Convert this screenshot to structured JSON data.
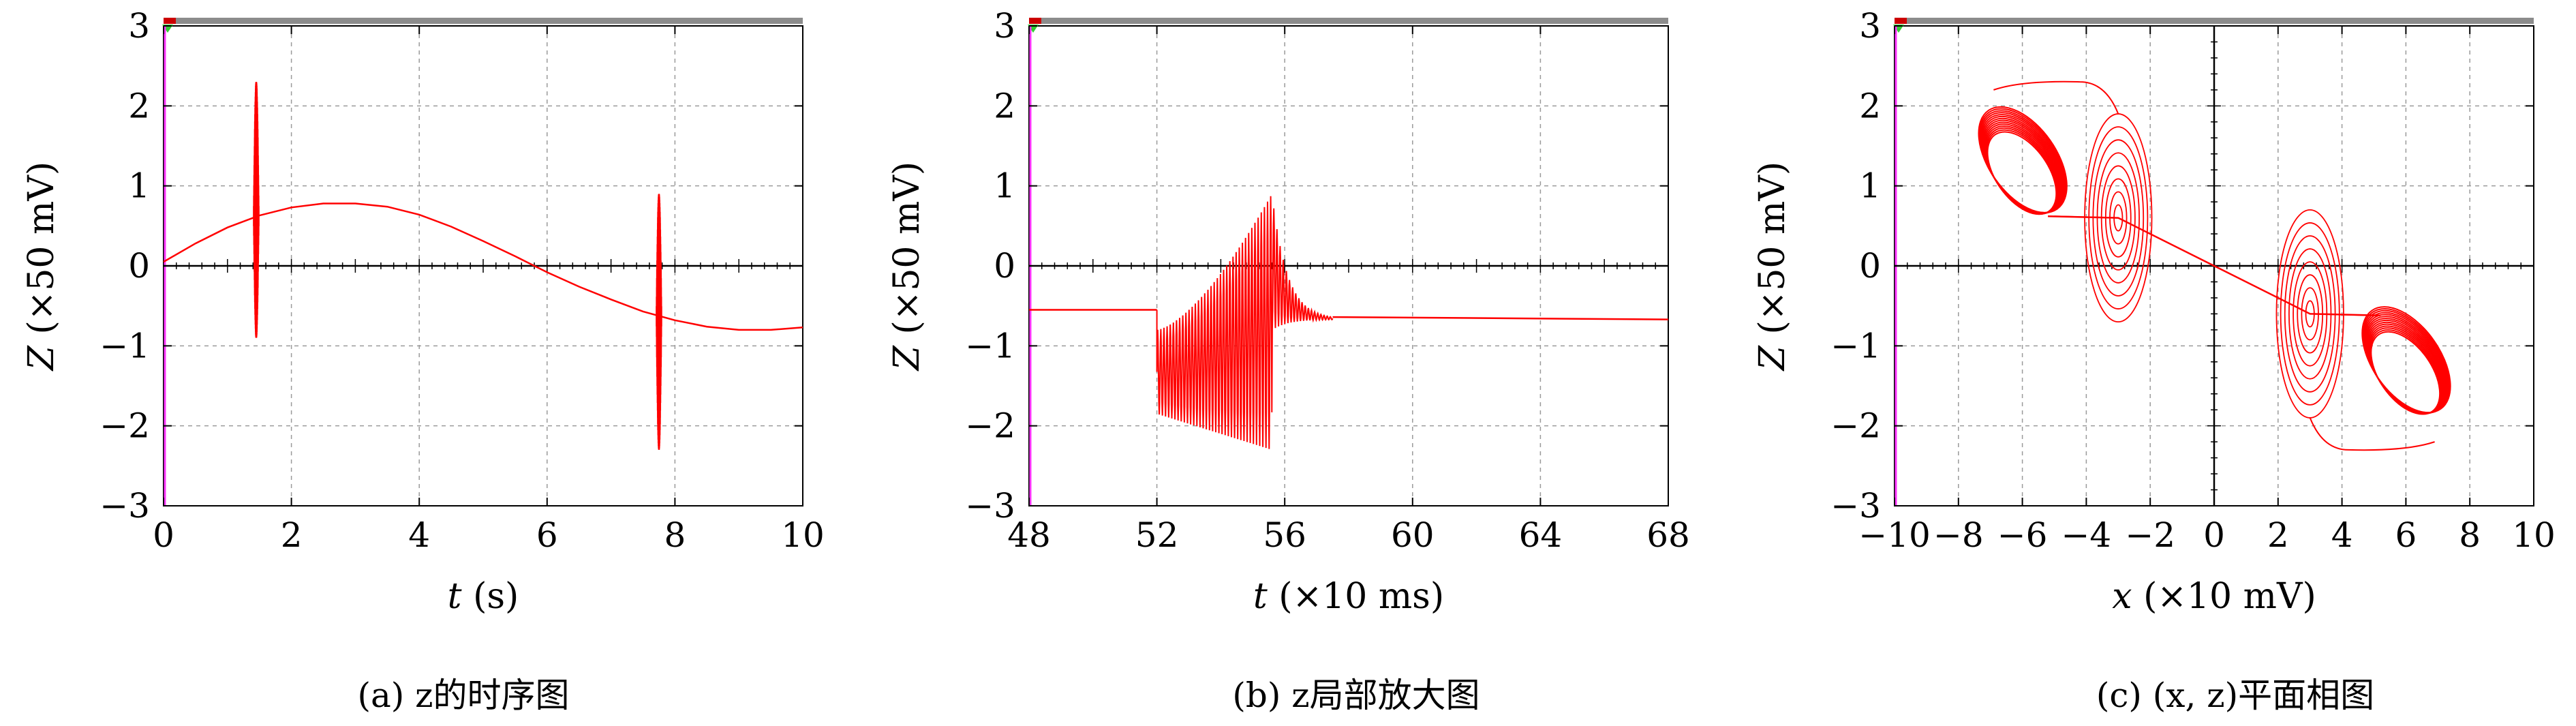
{
  "captions": [
    "(a) z的时序图",
    "(b) z局部放大图",
    "(c) (x, z)平面相图"
  ],
  "chart_data": [
    {
      "type": "line",
      "title": "",
      "xlabel_var": "t",
      "xlabel_unit": "(s)",
      "ylabel_var": "Z",
      "ylabel_unit": "(×50 mV)",
      "xlim": [
        0,
        10
      ],
      "ylim": [
        -3,
        3
      ],
      "xticks": [
        "0",
        "2",
        "4",
        "6",
        "8",
        "10"
      ],
      "xtick_values": [
        0,
        2,
        4,
        6,
        8,
        10
      ],
      "yticks": [
        "−3",
        "−2",
        "−1",
        "0",
        "1",
        "2",
        "3"
      ],
      "ytick_values": [
        -3,
        -2,
        -1,
        0,
        1,
        2,
        3
      ],
      "grid": true,
      "line_color": "#ff0000",
      "series": [
        {
          "kind": "slow_wave_with_bursts",
          "baseline_x": [
            0,
            0.5,
            1,
            1.5,
            2,
            2.5,
            3,
            3.5,
            4,
            4.5,
            5,
            5.5,
            6,
            6.5,
            7,
            7.5,
            8,
            8.5,
            9,
            9.5,
            10
          ],
          "baseline_y": [
            0.05,
            0.28,
            0.48,
            0.63,
            0.73,
            0.78,
            0.78,
            0.74,
            0.64,
            0.49,
            0.31,
            0.12,
            -0.08,
            -0.26,
            -0.42,
            -0.57,
            -0.68,
            -0.76,
            -0.8,
            -0.8,
            -0.77
          ],
          "bursts": [
            {
              "x": 1.45,
              "y_max": 2.3,
              "y_min": -0.9
            },
            {
              "x": 7.75,
              "y_max": 0.9,
              "y_min": -2.3
            }
          ]
        }
      ]
    },
    {
      "type": "line",
      "title": "",
      "xlabel_var": "t",
      "xlabel_unit": "(×10 ms)",
      "ylabel_var": "Z",
      "ylabel_unit": "(×50 mV)",
      "xlim": [
        48,
        68
      ],
      "ylim": [
        -3,
        3
      ],
      "xticks": [
        "48",
        "52",
        "56",
        "60",
        "64",
        "68"
      ],
      "xtick_values": [
        48,
        52,
        56,
        60,
        64,
        68
      ],
      "yticks": [
        "−3",
        "−2",
        "−1",
        "0",
        "1",
        "2",
        "3"
      ],
      "ytick_values": [
        -3,
        -2,
        -1,
        0,
        1,
        2,
        3
      ],
      "grid": true,
      "line_color": "#ff0000",
      "series": [
        {
          "kind": "burst_zoom",
          "pre_level": -0.55,
          "post_level": -0.67,
          "burst_start": 52,
          "burst_peak": 55.6,
          "burst_end": 57.5,
          "amp_start": [
            -1.85,
            -0.8
          ],
          "amp_peak": [
            -2.3,
            0.9
          ]
        }
      ]
    },
    {
      "type": "scatter",
      "title": "",
      "xlabel_var": "x",
      "xlabel_unit": "(×10 mV)",
      "ylabel_var": "Z",
      "ylabel_unit": "(×50 mV)",
      "xlim": [
        -10,
        10
      ],
      "ylim": [
        -3,
        3
      ],
      "xticks": [
        "−10",
        "−8",
        "−6",
        "−4",
        "−2",
        "0",
        "2",
        "4",
        "6",
        "8",
        "10"
      ],
      "xtick_values": [
        -10,
        -8,
        -6,
        -4,
        -2,
        0,
        2,
        4,
        6,
        8,
        10
      ],
      "yticks": [
        "−3",
        "−2",
        "−1",
        "0",
        "1",
        "2",
        "3"
      ],
      "ytick_values": [
        -3,
        -2,
        -1,
        0,
        1,
        2,
        3
      ],
      "grid": true,
      "line_color": "#ff0000",
      "series": [
        {
          "kind": "phase_portrait",
          "attractors": [
            {
              "cx": -6.0,
              "cy": 1.25,
              "rx": 1.05,
              "ry": 0.75
            },
            {
              "cx": 6.0,
              "cy": -1.25,
              "rx": 1.05,
              "ry": 0.75
            }
          ],
          "foci": [
            {
              "cx": -3.0,
              "cy": 0.6,
              "rx_max": 1.05,
              "ry_max": 1.3
            },
            {
              "cx": 3.0,
              "cy": -0.6,
              "rx_max": 1.05,
              "ry_max": 1.3
            }
          ],
          "connector": [
            [
              -5.2,
              0.62
            ],
            [
              -3.0,
              0.6
            ],
            [
              0,
              0
            ],
            [
              3.0,
              -0.6
            ],
            [
              5.2,
              -0.62
            ]
          ]
        }
      ]
    }
  ]
}
